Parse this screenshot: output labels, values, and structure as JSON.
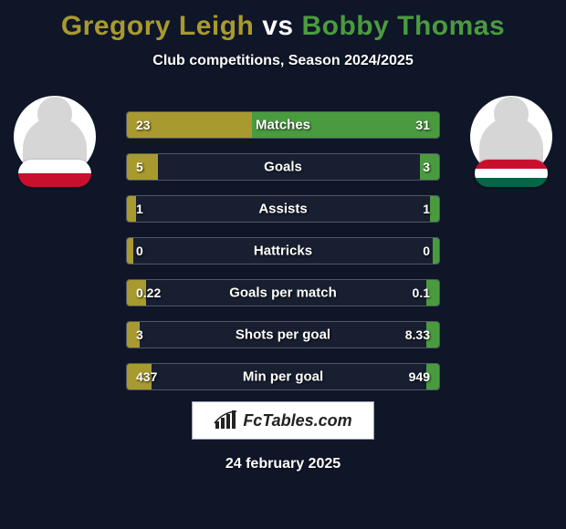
{
  "background_color": "#0f1628",
  "title": {
    "player1_name": "Gregory Leigh",
    "vs": "vs",
    "player2_name": "Bobby Thomas",
    "player1_color": "#a89a2f",
    "vs_color": "#ffffff",
    "player2_color": "#4a9b3f",
    "fontsize": 30
  },
  "subtitle": "Club competitions, Season 2024/2025",
  "player1": {
    "photo_bg": "#ffffff",
    "flag_stripes": [
      {
        "color": "#ffffff",
        "height_pct": 50
      },
      {
        "color": "#c8102e",
        "height_pct": 50
      }
    ]
  },
  "player2": {
    "photo_bg": "#ffffff",
    "flag_stripes": [
      {
        "color": "#c8102e",
        "height_pct": 33
      },
      {
        "color": "#ffffff",
        "height_pct": 34
      },
      {
        "color": "#006847",
        "height_pct": 33
      }
    ]
  },
  "bars": {
    "left_color": "#a89a2f",
    "right_color": "#4a9b3f",
    "track_border": "rgba(255,255,255,0.25)",
    "rows": [
      {
        "label": "Matches",
        "left_val": "23",
        "right_val": "31",
        "left_pct": 40,
        "right_pct": 60
      },
      {
        "label": "Goals",
        "left_val": "5",
        "right_val": "3",
        "left_pct": 10,
        "right_pct": 6
      },
      {
        "label": "Assists",
        "left_val": "1",
        "right_val": "1",
        "left_pct": 3,
        "right_pct": 3
      },
      {
        "label": "Hattricks",
        "left_val": "0",
        "right_val": "0",
        "left_pct": 2,
        "right_pct": 2
      },
      {
        "label": "Goals per match",
        "left_val": "0.22",
        "right_val": "0.1",
        "left_pct": 6,
        "right_pct": 4
      },
      {
        "label": "Shots per goal",
        "left_val": "3",
        "right_val": "8.33",
        "left_pct": 4,
        "right_pct": 4
      },
      {
        "label": "Min per goal",
        "left_val": "437",
        "right_val": "949",
        "left_pct": 8,
        "right_pct": 4
      }
    ]
  },
  "watermark": "FcTables.com",
  "date": "24 february 2025"
}
